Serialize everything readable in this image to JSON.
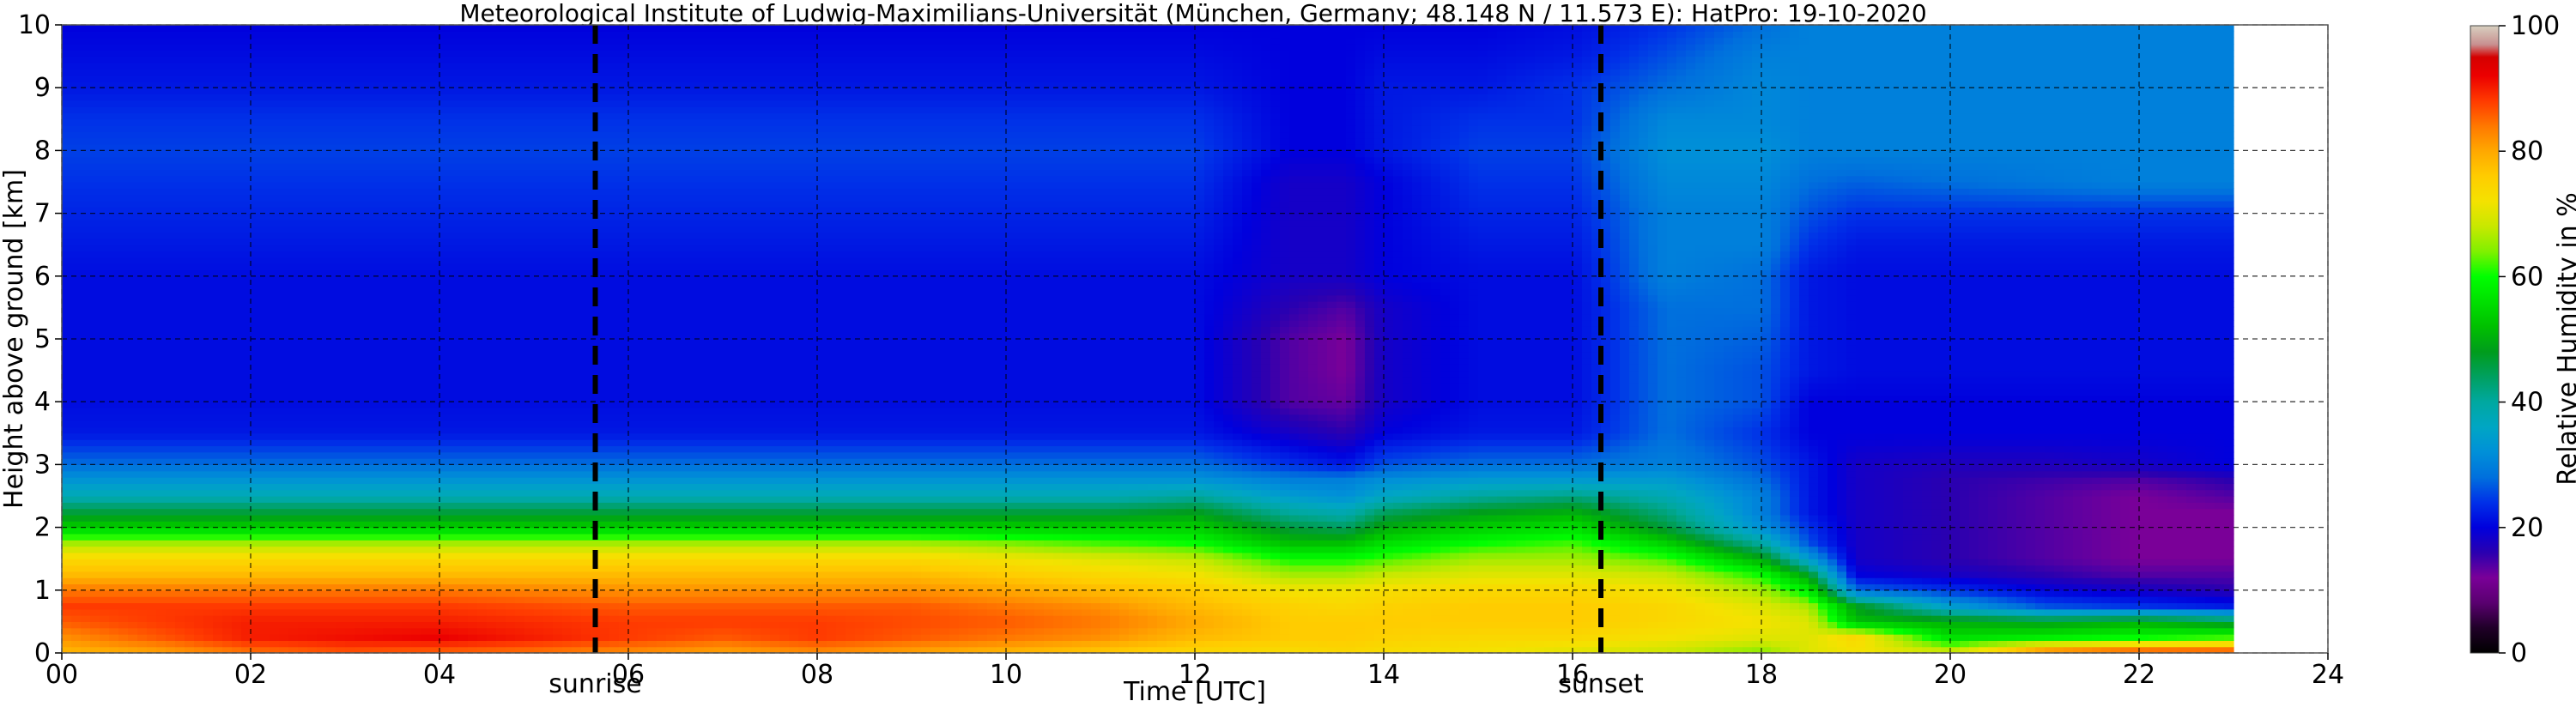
{
  "chart_data": {
    "type": "heatmap",
    "title": "Meteorological Institute of Ludwig-Maximilians-Universität (München, Germany; 48.148 N / 11.573 E):    HatPro: 19-10-2020",
    "xlabel": "Time [UTC]",
    "ylabel": "Height above ground [km]",
    "colorbar_label": "Relative Humidity in %",
    "xlim": [
      0,
      24
    ],
    "ylim": [
      0,
      10
    ],
    "x_ticks": [
      "00",
      "02",
      "04",
      "06",
      "08",
      "10",
      "12",
      "14",
      "16",
      "18",
      "20",
      "22",
      "24"
    ],
    "y_ticks": [
      "0",
      "1",
      "2",
      "3",
      "4",
      "5",
      "6",
      "7",
      "8",
      "9",
      "10"
    ],
    "colorbar_ticks": [
      "0",
      "20",
      "40",
      "60",
      "80",
      "100"
    ],
    "clim": [
      0,
      100
    ],
    "data_end_hour": 23.0,
    "grid": true,
    "markers": [
      {
        "label": "sunrise",
        "x": 5.65
      },
      {
        "label": "sunset",
        "x": 16.3
      }
    ],
    "colormap": [
      {
        "v": 0,
        "c": "#000000"
      },
      {
        "v": 4,
        "c": "#200028"
      },
      {
        "v": 8,
        "c": "#5a0070"
      },
      {
        "v": 12,
        "c": "#7a0098"
      },
      {
        "v": 16,
        "c": "#2a00b0"
      },
      {
        "v": 20,
        "c": "#0000dd"
      },
      {
        "v": 24,
        "c": "#0030e8"
      },
      {
        "v": 28,
        "c": "#0070dd"
      },
      {
        "v": 32,
        "c": "#0090d8"
      },
      {
        "v": 36,
        "c": "#00a6c4"
      },
      {
        "v": 40,
        "c": "#00a8a0"
      },
      {
        "v": 44,
        "c": "#00a060"
      },
      {
        "v": 48,
        "c": "#009c1c"
      },
      {
        "v": 52,
        "c": "#00c000"
      },
      {
        "v": 56,
        "c": "#00e000"
      },
      {
        "v": 60,
        "c": "#00ff00"
      },
      {
        "v": 64,
        "c": "#80f000"
      },
      {
        "v": 68,
        "c": "#c8e800"
      },
      {
        "v": 72,
        "c": "#f4e200"
      },
      {
        "v": 76,
        "c": "#ffcc00"
      },
      {
        "v": 80,
        "c": "#ffa800"
      },
      {
        "v": 84,
        "c": "#ff7800"
      },
      {
        "v": 88,
        "c": "#ff3a00"
      },
      {
        "v": 92,
        "c": "#ec0000"
      },
      {
        "v": 95,
        "c": "#d40000"
      },
      {
        "v": 97,
        "c": "#c89090"
      },
      {
        "v": 100,
        "c": "#d8d0c0"
      }
    ],
    "time_columns": [
      0,
      1,
      2,
      3,
      4,
      5,
      6,
      7,
      8,
      9,
      10,
      11,
      12,
      13,
      13.6,
      14,
      15,
      16,
      17,
      18,
      18.5,
      19,
      20,
      21,
      22,
      23
    ],
    "heights_km": [
      0,
      0.25,
      0.5,
      0.75,
      1,
      1.25,
      1.5,
      1.75,
      2,
      2.25,
      2.5,
      2.75,
      3,
      3.5,
      4,
      4.5,
      5,
      5.5,
      6,
      6.5,
      7,
      7.5,
      8,
      8.5,
      9,
      9.5,
      10
    ],
    "humidity_percent": [
      [
        78,
        80,
        84,
        86,
        85,
        84,
        82,
        80,
        82,
        80,
        78,
        76,
        74,
        73,
        74,
        73,
        72,
        70,
        68,
        64,
        70,
        72,
        70,
        86,
        90,
        90
      ],
      [
        82,
        86,
        90,
        91,
        92,
        90,
        88,
        86,
        88,
        86,
        84,
        82,
        78,
        76,
        76,
        75,
        74,
        74,
        72,
        70,
        70,
        74,
        56,
        58,
        60,
        62
      ],
      [
        86,
        88,
        90,
        90,
        90,
        89,
        88,
        88,
        88,
        87,
        86,
        84,
        80,
        76,
        76,
        76,
        76,
        76,
        74,
        72,
        70,
        52,
        50,
        48,
        50,
        46
      ],
      [
        88,
        88,
        88,
        88,
        88,
        87,
        86,
        86,
        86,
        86,
        84,
        82,
        78,
        75,
        74,
        75,
        76,
        76,
        74,
        70,
        66,
        48,
        34,
        26,
        24,
        22
      ],
      [
        84,
        84,
        84,
        84,
        84,
        83,
        82,
        82,
        82,
        82,
        80,
        78,
        76,
        72,
        72,
        73,
        74,
        74,
        72,
        66,
        58,
        28,
        24,
        20,
        18,
        16
      ],
      [
        78,
        78,
        78,
        78,
        78,
        78,
        78,
        78,
        78,
        78,
        76,
        74,
        72,
        66,
        66,
        68,
        70,
        70,
        68,
        60,
        48,
        20,
        18,
        16,
        14,
        14
      ],
      [
        74,
        74,
        74,
        74,
        74,
        74,
        74,
        74,
        74,
        74,
        72,
        70,
        68,
        60,
        60,
        62,
        66,
        66,
        62,
        50,
        34,
        18,
        16,
        14,
        12,
        12
      ],
      [
        66,
        66,
        66,
        66,
        66,
        66,
        66,
        66,
        66,
        66,
        64,
        62,
        60,
        52,
        52,
        56,
        60,
        62,
        54,
        40,
        26,
        18,
        16,
        14,
        12,
        12
      ],
      [
        54,
        54,
        54,
        54,
        54,
        54,
        54,
        54,
        54,
        54,
        54,
        54,
        54,
        46,
        44,
        50,
        54,
        56,
        46,
        32,
        24,
        18,
        16,
        14,
        12,
        12
      ],
      [
        46,
        46,
        46,
        46,
        46,
        46,
        46,
        46,
        46,
        46,
        46,
        46,
        48,
        40,
        38,
        44,
        48,
        50,
        42,
        30,
        22,
        18,
        16,
        14,
        12,
        12
      ],
      [
        38,
        38,
        38,
        38,
        38,
        38,
        38,
        38,
        38,
        38,
        38,
        38,
        40,
        34,
        32,
        36,
        40,
        42,
        38,
        30,
        22,
        18,
        16,
        14,
        12,
        14
      ],
      [
        33,
        33,
        33,
        33,
        33,
        33,
        33,
        33,
        33,
        33,
        33,
        33,
        33,
        30,
        30,
        32,
        34,
        34,
        34,
        28,
        22,
        18,
        16,
        15,
        14,
        16
      ],
      [
        28,
        28,
        28,
        28,
        28,
        28,
        28,
        28,
        28,
        28,
        28,
        28,
        28,
        24,
        22,
        26,
        28,
        28,
        30,
        26,
        22,
        18,
        17,
        17,
        18,
        20
      ],
      [
        22,
        22,
        22,
        22,
        22,
        22,
        22,
        22,
        22,
        22,
        22,
        22,
        22,
        18,
        16,
        20,
        22,
        22,
        28,
        24,
        20,
        20,
        20,
        20,
        20,
        20
      ],
      [
        21,
        21,
        21,
        21,
        21,
        21,
        21,
        21,
        21,
        21,
        21,
        21,
        21,
        14,
        13,
        18,
        21,
        21,
        28,
        26,
        20,
        20,
        20,
        20,
        20,
        20
      ],
      [
        21,
        21,
        21,
        21,
        21,
        21,
        21,
        21,
        21,
        21,
        21,
        21,
        21,
        14,
        12,
        18,
        21,
        21,
        28,
        26,
        22,
        21,
        21,
        21,
        21,
        21
      ],
      [
        21,
        21,
        21,
        21,
        21,
        21,
        21,
        21,
        21,
        21,
        21,
        21,
        21,
        14,
        12,
        18,
        21,
        21,
        28,
        27,
        22,
        21,
        21,
        21,
        21,
        21
      ],
      [
        21,
        21,
        21,
        21,
        21,
        21,
        21,
        21,
        21,
        21,
        21,
        21,
        21,
        16,
        14,
        18,
        21,
        21,
        28,
        28,
        22,
        21,
        21,
        21,
        21,
        21
      ],
      [
        21,
        21,
        21,
        21,
        21,
        21,
        21,
        21,
        21,
        21,
        21,
        21,
        21,
        18,
        18,
        20,
        21,
        21,
        30,
        28,
        22,
        21,
        21,
        21,
        21,
        21
      ],
      [
        22,
        22,
        22,
        22,
        22,
        22,
        22,
        22,
        22,
        22,
        22,
        22,
        22,
        18,
        18,
        20,
        22,
        22,
        30,
        30,
        24,
        22,
        22,
        22,
        22,
        22
      ],
      [
        23,
        23,
        23,
        23,
        23,
        23,
        23,
        23,
        23,
        23,
        23,
        23,
        23,
        18,
        18,
        20,
        23,
        23,
        30,
        30,
        26,
        24,
        24,
        24,
        24,
        24
      ],
      [
        24,
        24,
        24,
        24,
        24,
        24,
        24,
        24,
        24,
        24,
        24,
        24,
        24,
        18,
        18,
        20,
        24,
        24,
        31,
        31,
        28,
        27,
        28,
        29,
        30,
        30
      ],
      [
        25,
        25,
        25,
        25,
        25,
        25,
        25,
        25,
        25,
        25,
        25,
        25,
        25,
        20,
        20,
        22,
        25,
        25,
        32,
        32,
        30,
        30,
        30,
        30,
        30,
        30
      ],
      [
        24,
        24,
        24,
        24,
        24,
        24,
        24,
        24,
        24,
        24,
        24,
        24,
        24,
        20,
        20,
        22,
        24,
        24,
        31,
        31,
        30,
        30,
        30,
        30,
        30,
        30
      ],
      [
        22,
        22,
        22,
        22,
        22,
        22,
        22,
        22,
        22,
        22,
        22,
        22,
        22,
        20,
        20,
        22,
        22,
        24,
        28,
        31,
        30,
        30,
        30,
        30,
        30,
        30
      ],
      [
        21,
        21,
        21,
        21,
        21,
        21,
        21,
        21,
        21,
        21,
        21,
        21,
        21,
        20,
        20,
        21,
        21,
        22,
        26,
        30,
        30,
        30,
        30,
        30,
        30,
        30
      ],
      [
        20,
        20,
        20,
        20,
        20,
        20,
        20,
        20,
        20,
        20,
        20,
        20,
        20,
        20,
        20,
        20,
        20,
        21,
        24,
        28,
        30,
        30,
        30,
        30,
        30,
        30
      ]
    ]
  }
}
